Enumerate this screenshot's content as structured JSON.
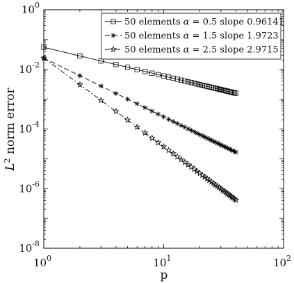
{
  "chart_data": {
    "type": "line",
    "title": "",
    "xlabel": "p",
    "ylabel_base": "L",
    "ylabel_sup": "2",
    "ylabel_rest": " norm error",
    "x_scale": "log",
    "y_scale": "log",
    "xlim": [
      1,
      100
    ],
    "ylim": [
      1e-08,
      1
    ],
    "grid": false,
    "legend_position": "top-right",
    "x_ticks": [
      {
        "value": 1,
        "base": "10",
        "exp": "0"
      },
      {
        "value": 10,
        "base": "10",
        "exp": "1"
      },
      {
        "value": 100,
        "base": "10",
        "exp": "2"
      }
    ],
    "y_ticks": [
      {
        "value": 1,
        "base": "10",
        "exp": "0"
      },
      {
        "value": 0.01,
        "base": "10",
        "exp": "-2"
      },
      {
        "value": 0.0001,
        "base": "10",
        "exp": "-4"
      },
      {
        "value": 1e-06,
        "base": "10",
        "exp": "-6"
      },
      {
        "value": 1e-08,
        "base": "10",
        "exp": "-8"
      }
    ],
    "series": [
      {
        "name": "50 elements α = 0.5 slope 0.96141",
        "legend_prefix": "50 elements ",
        "legend_alpha": "α",
        "legend_suffix": " = 0.5 slope 0.96141",
        "marker": "square",
        "dash": "",
        "color": "#000000",
        "p_start": 1,
        "p_end": 40,
        "y_at_p1": 0.055,
        "slope": 0.96141
      },
      {
        "name": "50 elements α = 1.5 slope 1.9723",
        "legend_prefix": "50 elements ",
        "legend_alpha": "α",
        "legend_suffix": " = 1.5 slope 1.9723",
        "marker": "asterisk",
        "dash": "7,4",
        "color": "#000000",
        "p_start": 1,
        "p_end": 40,
        "y_at_p1": 0.024,
        "slope": 1.9723
      },
      {
        "name": "50 elements α = 2.5 slope 2.9715",
        "legend_prefix": "50 elements ",
        "legend_alpha": "α",
        "legend_suffix": " = 2.5 slope 2.9715",
        "marker": "star",
        "dash": "7,3,2,3",
        "color": "#000000",
        "p_start": 1,
        "p_end": 40,
        "y_at_p1": 0.024,
        "slope": 2.9715
      }
    ]
  }
}
